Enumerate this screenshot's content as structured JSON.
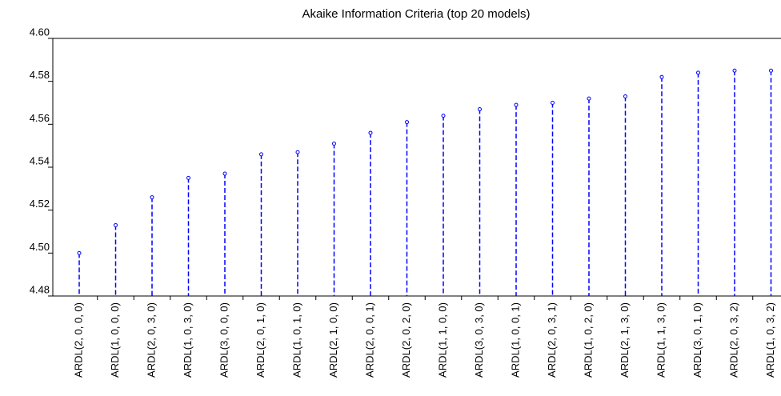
{
  "chart_data": {
    "type": "stem",
    "title": "Akaike Information Criteria (top 20 models)",
    "categories": [
      "ARDL(2, 0, 0, 0)",
      "ARDL(1, 0, 0, 0)",
      "ARDL(2, 0, 3, 0)",
      "ARDL(1, 0, 3, 0)",
      "ARDL(3, 0, 0, 0)",
      "ARDL(2, 0, 1, 0)",
      "ARDL(1, 0, 1, 0)",
      "ARDL(2, 1, 0, 0)",
      "ARDL(2, 0, 0, 1)",
      "ARDL(2, 0, 2, 0)",
      "ARDL(1, 1, 0, 0)",
      "ARDL(3, 0, 3, 0)",
      "ARDL(1, 0, 0, 1)",
      "ARDL(2, 0, 3, 1)",
      "ARDL(1, 0, 2, 0)",
      "ARDL(2, 1, 3, 0)",
      "ARDL(1, 1, 3, 0)",
      "ARDL(3, 0, 1, 0)",
      "ARDL(2, 0, 3, 2)",
      "ARDL(1, 0, 3, 2)"
    ],
    "values": [
      4.5,
      4.513,
      4.526,
      4.535,
      4.537,
      4.546,
      4.547,
      4.551,
      4.556,
      4.561,
      4.564,
      4.567,
      4.569,
      4.57,
      4.572,
      4.573,
      4.582,
      4.584,
      4.585,
      4.585
    ],
    "color": "#0000ff",
    "ylim": [
      4.48,
      4.6
    ],
    "yticks": [
      4.48,
      {
        "value": 4.5,
        "label": "4.50"
      },
      4.52,
      4.54,
      4.56,
      4.58,
      {
        "value": 4.6,
        "label": "4.60"
      }
    ]
  }
}
